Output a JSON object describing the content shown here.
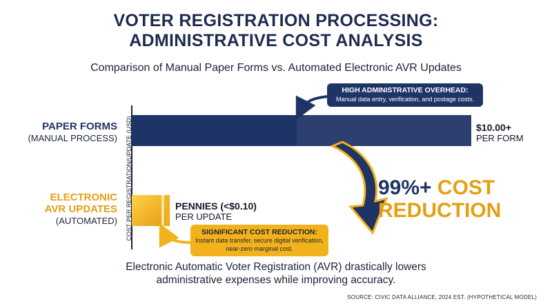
{
  "header": {
    "title_line1": "VOTER REGISTRATION PROCESSING:",
    "title_line2": "ADMINISTRATIVE COST ANALYSIS",
    "subtitle": "Comparison of Manual Paper Forms vs. Automated Electronic AVR Updates"
  },
  "categories": [
    {
      "name": "PAPER FORMS",
      "sub": "(MANUAL PROCESS)",
      "value_main": "$10.00+",
      "value_sub": "PER FORM"
    },
    {
      "name_line1": "ELECTRONIC",
      "name_line2": "AVR UPDATES",
      "sub": "(AUTOMATED)",
      "value_main": "PENNIES (<$0.10)",
      "value_sub": "PER UPDATE"
    }
  ],
  "callouts": {
    "top_title": "HIGH ADMINISTRATIVE OVERHEAD:",
    "top_body": "Manual data entry, verification, and postage costs.",
    "bottom_title": "SIGNIFICANT COST REDUCTION:",
    "bottom_line1": "Instant data transfer, secure digital verification,",
    "bottom_line2": "near-zero marginal cost."
  },
  "reduction": {
    "pct": "99%+",
    "cost": "COST",
    "word": "REDUCTION"
  },
  "caption_line1": "Electronic Automatic Voter Registration (AVR) drastically lowers",
  "caption_line2": "administrative expenses while improving accuracy.",
  "source": "SOURCE: CIVIC DATA ALLIANCE, 2024 EST. (HYPOTHETICAL MODEL)",
  "colors": {
    "navy": "#1f3466",
    "gold": "#f2b21b",
    "gold_dark": "#e3a013"
  },
  "chart_data": {
    "type": "bar",
    "orientation": "horizontal",
    "title": "VOTER REGISTRATION PROCESSING: ADMINISTRATIVE COST ANALYSIS",
    "subtitle": "Comparison of Manual Paper Forms vs. Automated Electronic AVR Updates",
    "ylabel": "COST PER REGISTRATION/UPDATE (USD)",
    "categories": [
      "PAPER FORMS",
      "ELECTRONIC AVR UPDATES"
    ],
    "values": [
      10.0,
      0.1
    ],
    "value_labels": [
      "$10.00+",
      "PENNIES (<$0.10)"
    ],
    "annotation": "99%+ COST REDUCTION",
    "grid": false
  }
}
